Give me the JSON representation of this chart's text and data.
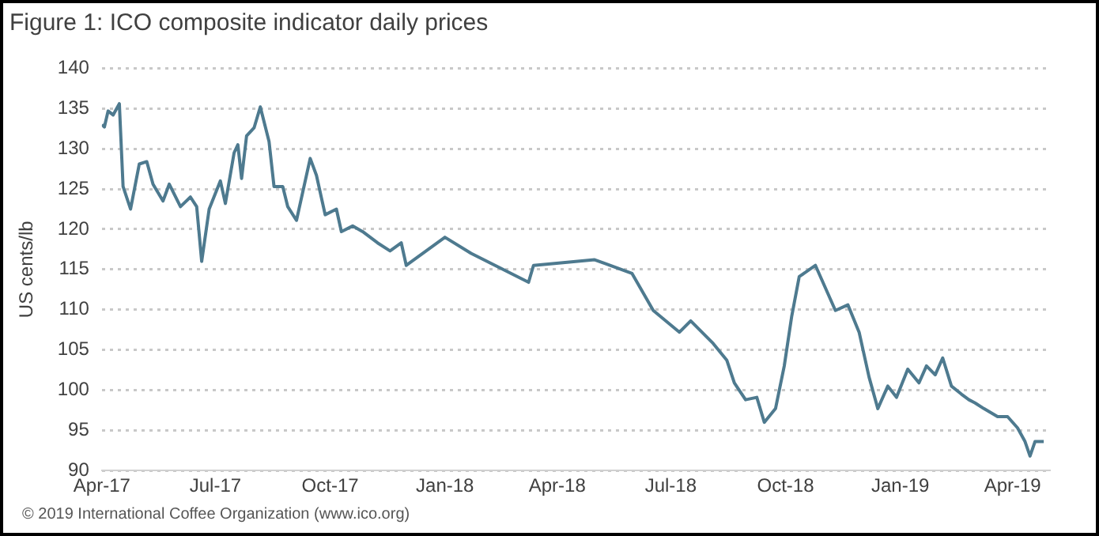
{
  "chart_data": {
    "type": "line",
    "title": "Figure 1: ICO composite indicator daily prices",
    "ylabel": "US cents/lb",
    "annotations": [
      "© 2019 International Coffee Organization (www.ico.org)"
    ],
    "x": [
      "2017-04-01",
      "2017-04-03",
      "2017-04-06",
      "2017-04-10",
      "2017-04-15",
      "2017-04-18",
      "2017-04-24",
      "2017-05-01",
      "2017-05-07",
      "2017-05-12",
      "2017-05-20",
      "2017-05-25",
      "2017-06-03",
      "2017-06-11",
      "2017-06-16",
      "2017-06-20",
      "2017-06-26",
      "2017-07-05",
      "2017-07-09",
      "2017-07-16",
      "2017-07-19",
      "2017-07-22",
      "2017-07-26",
      "2017-08-01",
      "2017-08-06",
      "2017-08-13",
      "2017-08-17",
      "2017-08-24",
      "2017-08-28",
      "2017-09-04",
      "2017-09-08",
      "2017-09-15",
      "2017-09-20",
      "2017-09-27",
      "2017-10-06",
      "2017-10-10",
      "2017-10-19",
      "2017-10-27",
      "2017-11-08",
      "2017-11-18",
      "2017-11-27",
      "2017-12-01",
      "2018-01-01",
      "2018-01-22",
      "2018-03-09",
      "2018-03-13",
      "2018-05-01",
      "2018-05-31",
      "2018-06-17",
      "2018-07-08",
      "2018-07-17",
      "2018-08-04",
      "2018-08-15",
      "2018-08-21",
      "2018-08-30",
      "2018-09-08",
      "2018-09-14",
      "2018-09-23",
      "2018-09-30",
      "2018-10-06",
      "2018-10-12",
      "2018-10-25",
      "2018-11-10",
      "2018-11-20",
      "2018-11-29",
      "2018-12-07",
      "2018-12-14",
      "2018-12-22",
      "2018-12-29",
      "2019-01-07",
      "2019-01-16",
      "2019-01-22",
      "2019-01-29",
      "2019-02-04",
      "2019-02-11",
      "2019-02-19",
      "2019-02-25",
      "2019-03-02",
      "2019-03-09",
      "2019-03-20",
      "2019-03-28",
      "2019-04-05",
      "2019-04-11",
      "2019-04-15",
      "2019-04-19",
      "2019-04-26"
    ],
    "series": [
      {
        "color": "#4e7a8f",
        "values": [
          133,
          132.7,
          134.7,
          134.2,
          135.6,
          125.3,
          122.5,
          128.1,
          128.4,
          125.6,
          123.5,
          125.6,
          122.8,
          124,
          122.8,
          116,
          122.5,
          126,
          123.2,
          129.5,
          130.5,
          126.3,
          131.6,
          132.6,
          135.2,
          130.9,
          125.3,
          125.3,
          122.8,
          121.1,
          123.9,
          128.8,
          126.7,
          121.8,
          122.5,
          119.7,
          120.4,
          119.7,
          118.3,
          117.3,
          118.3,
          115.5,
          119,
          117,
          113.4,
          115.5,
          116.2,
          114.5,
          109.9,
          107.2,
          108.6,
          105.8,
          103.7,
          100.9,
          98.8,
          99.1,
          96,
          97.7,
          103,
          109.2,
          114.1,
          115.5,
          109.9,
          110.6,
          107.2,
          101.6,
          97.7,
          100.5,
          99.1,
          102.6,
          100.9,
          103,
          101.9,
          104,
          100.5,
          99.5,
          98.8,
          98.4,
          97.7,
          96.7,
          96.7,
          95.3,
          93.6,
          91.8,
          93.6,
          93.6
        ]
      }
    ],
    "xlim": [
      "2017-04-01",
      "2019-05-01"
    ],
    "xticks": [
      {
        "value": "2017-04-01",
        "label": "Apr-17"
      },
      {
        "value": "2017-07-01",
        "label": "Jul-17"
      },
      {
        "value": "2017-10-01",
        "label": "Oct-17"
      },
      {
        "value": "2018-01-01",
        "label": "Jan-18"
      },
      {
        "value": "2018-04-01",
        "label": "Apr-18"
      },
      {
        "value": "2018-07-01",
        "label": "Jul-18"
      },
      {
        "value": "2018-10-01",
        "label": "Oct-18"
      },
      {
        "value": "2019-01-01",
        "label": "Jan-19"
      },
      {
        "value": "2019-04-01",
        "label": "Apr-19"
      }
    ],
    "ylim": [
      90,
      140
    ],
    "yticks": [
      90,
      95,
      100,
      105,
      110,
      115,
      120,
      125,
      130,
      135,
      140
    ],
    "grid": "y",
    "legend": false,
    "marker": "none",
    "line_style": "solid"
  }
}
